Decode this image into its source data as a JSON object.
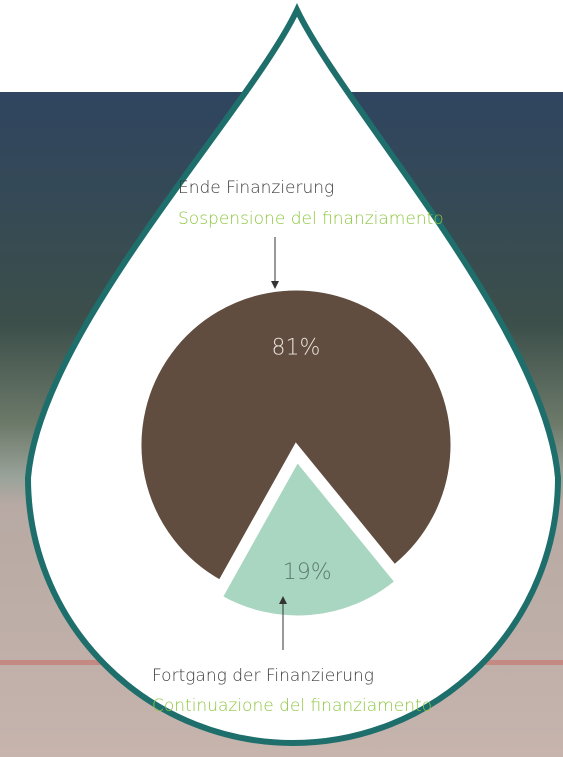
{
  "chart_data": {
    "type": "pie",
    "categories": [
      "Ende Finanzierung",
      "Fortgang der Finanzierung"
    ],
    "categories_it": [
      "Sospensione del finanziamento",
      "Continuazione del finanziamento"
    ],
    "values": [
      81,
      19
    ],
    "value_labels": [
      "81%",
      "19%"
    ],
    "colors": [
      "#604d3f",
      "#a9d6c1"
    ]
  }
}
